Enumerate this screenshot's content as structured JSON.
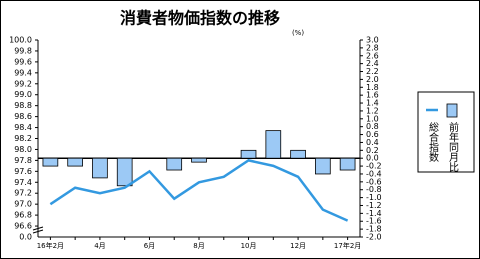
{
  "chart_data": {
    "type": "combo",
    "title": "消費者物価指数の推移",
    "unit_label": "(%)",
    "categories": [
      "16年2月",
      null,
      "4月",
      null,
      "6月",
      null,
      "8月",
      null,
      "10月",
      null,
      "12月",
      null,
      "17年2月"
    ],
    "series": [
      {
        "name": "総合指数",
        "type": "line",
        "axis": "y",
        "color": "#3399e0",
        "values": [
          97.0,
          97.3,
          97.2,
          97.3,
          97.6,
          97.1,
          97.4,
          97.5,
          97.8,
          97.7,
          97.5,
          96.9,
          96.7
        ]
      },
      {
        "name": "前年同月比",
        "type": "bar",
        "axis": "y2",
        "color": "#9cc9f5",
        "values": [
          -0.2,
          -0.2,
          -0.5,
          -0.7,
          0.0,
          -0.3,
          -0.1,
          0.0,
          0.2,
          0.7,
          0.2,
          -0.4,
          -0.3
        ]
      }
    ],
    "ylim": [
      96.4,
      100.0
    ],
    "yticks": [
      {
        "value": 100.0,
        "label": "100.0"
      },
      99.8,
      99.6,
      99.4,
      99.2,
      {
        "value": 99.0,
        "label": "99.0"
      },
      98.8,
      98.6,
      98.4,
      98.2,
      {
        "value": 98.0,
        "label": "98.0"
      },
      97.8,
      97.6,
      97.4,
      97.2,
      {
        "value": 97.0,
        "label": "97.0"
      },
      96.8,
      96.6
    ],
    "axis_break_label": "0.0",
    "y2lim": [
      -2.0,
      3.0
    ],
    "y2ticks": [
      {
        "value": 3.0,
        "label": "3.0"
      },
      2.8,
      2.6,
      2.4,
      2.2,
      {
        "value": 2.0,
        "label": "2.0"
      },
      1.8,
      1.6,
      1.4,
      1.2,
      {
        "value": 1.0,
        "label": "1.0"
      },
      0.8,
      0.6,
      0.4,
      0.2,
      {
        "value": 0.0,
        "label": "0.0"
      },
      -0.2,
      -0.4,
      -0.6,
      -0.8,
      {
        "value": -1.0,
        "label": "-1.0"
      },
      -1.2,
      -1.4,
      -1.6,
      -1.8,
      {
        "value": -2.0,
        "label": "-2.0"
      }
    ],
    "grid": false,
    "legend": "right"
  }
}
